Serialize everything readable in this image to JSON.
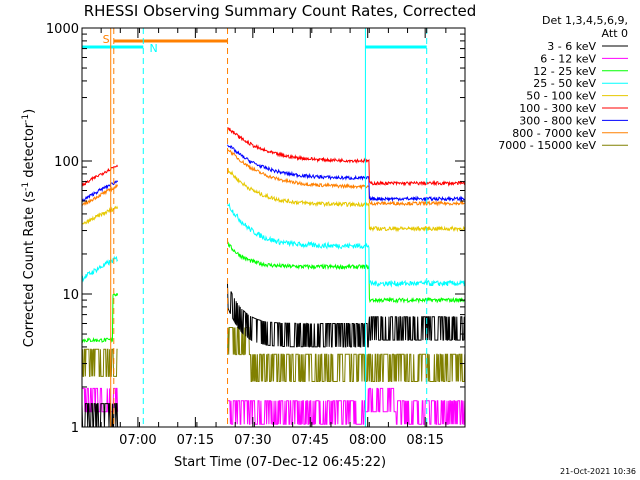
{
  "chart_data": {
    "type": "line",
    "title": "RHESSI Observing Summary Count Rates, Corrected",
    "xlabel": "Start Time (07-Dec-12 06:45:22)",
    "ylabel_parts": {
      "main": "Corrected Count Rate (s",
      "sup": "-1",
      "rest": " detector",
      "sup2": "-1",
      "close": ")"
    },
    "y_scale": "log",
    "ylim": [
      1,
      1000
    ],
    "xlim_minutes": [
      0,
      100
    ],
    "x_ticks": [
      {
        "t": 14.6,
        "label": "07:00"
      },
      {
        "t": 29.6,
        "label": "07:15"
      },
      {
        "t": 44.6,
        "label": "07:30"
      },
      {
        "t": 59.6,
        "label": "07:45"
      },
      {
        "t": 74.6,
        "label": "08:00"
      },
      {
        "t": 89.6,
        "label": "08:15"
      }
    ],
    "y_ticks": [
      {
        "v": 1,
        "label": "1"
      },
      {
        "v": 10,
        "label": "10"
      },
      {
        "v": 100,
        "label": "100"
      },
      {
        "v": 1000,
        "label": "1000"
      }
    ],
    "legend_header": [
      "Det 1,3,4,5,6,9,",
      "Att 0"
    ],
    "series": [
      {
        "name": "3 - 6 keV",
        "color": "#000000"
      },
      {
        "name": "6 - 12 keV",
        "color": "#ff00ff"
      },
      {
        "name": "12 - 25 keV",
        "color": "#00ff00"
      },
      {
        "name": "25 - 50 keV",
        "color": "#00ffff"
      },
      {
        "name": "50 - 100 keV",
        "color": "#e6c800"
      },
      {
        "name": "100 - 300 keV",
        "color": "#ff0000"
      },
      {
        "name": "300 - 800 keV",
        "color": "#0000ff"
      },
      {
        "name": "800 - 7000 keV",
        "color": "#ff8000"
      },
      {
        "name": "7000 - 15000 keV",
        "color": "#808000"
      }
    ],
    "saa_label": "S",
    "night_label": "N",
    "saa_color": "#ff8000",
    "night_color": "#00ffff",
    "saa_intervals": [
      [
        8.3,
        38.0
      ]
    ],
    "night_intervals": [
      [
        0,
        16.0
      ],
      [
        74.0,
        90.0
      ]
    ],
    "night_boundaries": [
      16.0,
      90.0
    ],
    "saa_boundaries": [
      8.3,
      38.0
    ],
    "timestamp": "21-Oct-2021 10:36"
  }
}
